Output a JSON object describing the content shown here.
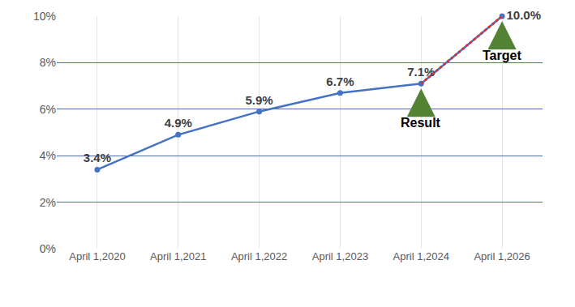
{
  "chart_data": {
    "type": "line",
    "categories": [
      "April 1,2020",
      "April 1,2021",
      "April 1,2022",
      "April 1,2023",
      "April 1,2024",
      "April 1,2026"
    ],
    "series": [
      {
        "color": "#4472c4",
        "marker": "circle",
        "line_style": "solid",
        "values": [
          3.4,
          4.9,
          5.9,
          6.7,
          7.1,
          10.0
        ],
        "value_labels": [
          "3.4%",
          "4.9%",
          "5.9%",
          "6.7%",
          "7.1%",
          "10.0%"
        ]
      },
      {
        "color": "#e0322b",
        "marker": "none",
        "line_style": "dotted",
        "values": [
          null,
          null,
          null,
          null,
          7.1,
          10.0
        ]
      }
    ],
    "data_labels": true,
    "ylim": [
      0,
      10
    ],
    "yticks": [
      {
        "value": 0,
        "label": "0%"
      },
      {
        "value": 2,
        "label": "2%"
      },
      {
        "value": 4,
        "label": "4%"
      },
      {
        "value": 6,
        "label": "6%"
      },
      {
        "value": 8,
        "label": "8%"
      },
      {
        "value": 10,
        "label": "10%"
      }
    ],
    "grid": true,
    "annotations": [
      {
        "text": "Result",
        "category": "April 1,2024"
      },
      {
        "text": "Target",
        "category": "April 1,2026"
      }
    ]
  }
}
